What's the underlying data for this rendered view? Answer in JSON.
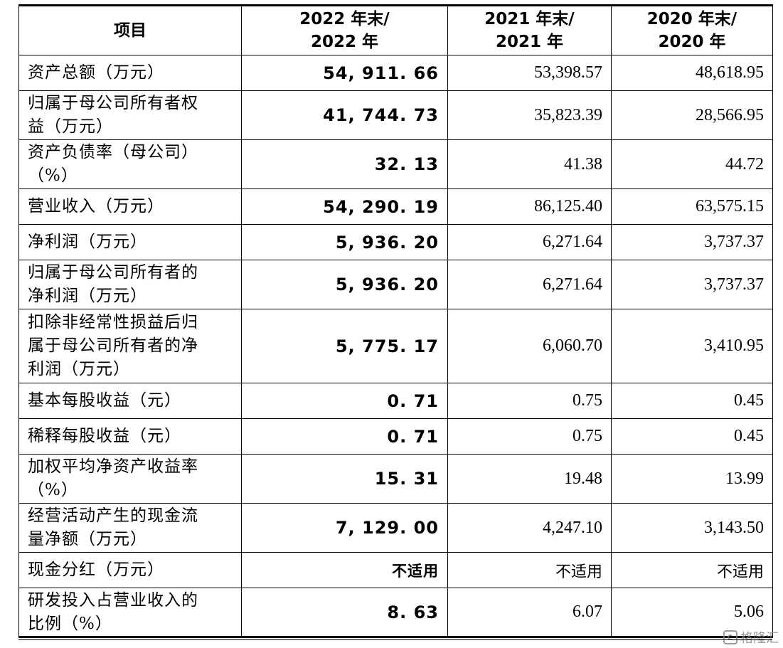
{
  "table": {
    "headers": [
      {
        "line1": "项目",
        "line2": ""
      },
      {
        "line1": "2022 年末/",
        "line2": "2022 年"
      },
      {
        "line1": "2021 年末/",
        "line2": "2021 年"
      },
      {
        "line1": "2020 年末/",
        "line2": "2020 年"
      }
    ],
    "rows": [
      {
        "label": [
          "资产总额（万元）"
        ],
        "y2022": "54, 911. 66",
        "y2021": "53,398.57",
        "y2020": "48,618.95"
      },
      {
        "label": [
          "归属于母公司所有者权",
          "益（万元）"
        ],
        "y2022": "41, 744. 73",
        "y2021": "35,823.39",
        "y2020": "28,566.95"
      },
      {
        "label": [
          "资产负债率（母公司）",
          "（%）"
        ],
        "y2022": "32. 13",
        "y2021": "41.38",
        "y2020": "44.72"
      },
      {
        "label": [
          "营业收入（万元）"
        ],
        "y2022": "54, 290. 19",
        "y2021": "86,125.40",
        "y2020": "63,575.15"
      },
      {
        "label": [
          "净利润（万元）"
        ],
        "y2022": "5, 936. 20",
        "y2021": "6,271.64",
        "y2020": "3,737.37"
      },
      {
        "label": [
          "归属于母公司所有者的",
          "净利润（万元）"
        ],
        "y2022": "5, 936. 20",
        "y2021": "6,271.64",
        "y2020": "3,737.37"
      },
      {
        "label": [
          "扣除非经常性损益后归",
          "属于母公司所有者的净",
          "利润（万元）"
        ],
        "y2022": "5, 775. 17",
        "y2021": "6,060.70",
        "y2020": "3,410.95"
      },
      {
        "label": [
          "基本每股收益（元）"
        ],
        "y2022": "0. 71",
        "y2021": "0.75",
        "y2020": "0.45"
      },
      {
        "label": [
          "稀释每股收益（元）"
        ],
        "y2022": "0. 71",
        "y2021": "0.75",
        "y2020": "0.45"
      },
      {
        "label": [
          "加权平均净资产收益率",
          "（%）"
        ],
        "y2022": "15. 31",
        "y2021": "19.48",
        "y2020": "13.99"
      },
      {
        "label": [
          "经营活动产生的现金流",
          "量净额（万元）"
        ],
        "y2022": "7, 129. 00",
        "y2021": "4,247.10",
        "y2020": "3,143.50"
      },
      {
        "label": [
          "现金分红（万元）"
        ],
        "y2022": "不适用",
        "y2021": "不适用",
        "y2020": "不适用"
      },
      {
        "label": [
          "研发投入占营业收入的",
          "比例（%）"
        ],
        "y2022": "8. 63",
        "y2021": "6.07",
        "y2020": "5.06"
      }
    ]
  },
  "watermark": {
    "text": "格隆汇",
    "icon": "gelonghui-logo-icon"
  }
}
